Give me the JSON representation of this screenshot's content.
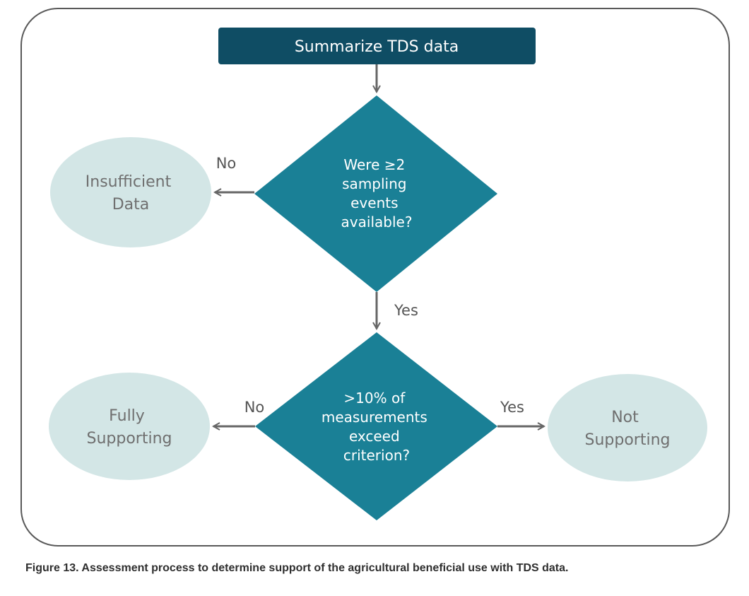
{
  "diagram": {
    "start": "Summarize TDS data",
    "decision1": [
      "Were ≥2",
      "sampling",
      "events",
      "available?"
    ],
    "decision2": [
      ">10% of",
      "measurements",
      "exceed",
      "criterion?"
    ],
    "outcome_insufficient": [
      "Insufficient",
      "Data"
    ],
    "outcome_fully": [
      "Fully",
      "Supporting"
    ],
    "outcome_not": [
      "Not",
      "Supporting"
    ],
    "edges": {
      "d1_no": "No",
      "d1_yes": "Yes",
      "d2_no": "No",
      "d2_yes": "Yes"
    }
  },
  "caption": "Figure 13. Assessment process to determine support of the agricultural beneficial use with TDS data.",
  "colors": {
    "start_fill": "#0f4d64",
    "decision_fill": "#1a8096",
    "outcome_fill": "#d3e6e6",
    "connector": "#666666",
    "frame_stroke": "#595959"
  }
}
